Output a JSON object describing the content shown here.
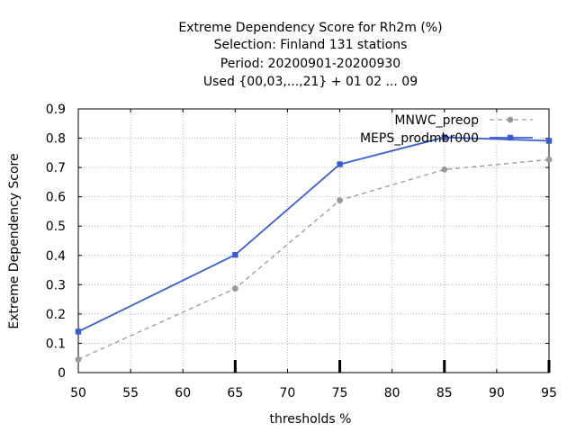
{
  "chart_data": {
    "type": "line",
    "title_lines": [
      "Extreme Dependency Score  for Rh2m (%)",
      "Selection: Finland    131 stations",
      "Period: 20200901-20200930",
      "Used {00,03,...,21} + 01 02 ... 09"
    ],
    "xlabel": "thresholds %",
    "ylabel": "Extreme Dependency Score",
    "xlim": [
      50,
      95
    ],
    "ylim": [
      0,
      0.9
    ],
    "xticks": [
      50,
      55,
      60,
      65,
      70,
      75,
      80,
      85,
      90,
      95
    ],
    "yticks": [
      0,
      0.1,
      0.2,
      0.3,
      0.4,
      0.5,
      0.6,
      0.7,
      0.8,
      0.9
    ],
    "ytick_labels": [
      "0",
      "0.1",
      "0.2",
      "0.3",
      "0.4",
      "0.5",
      "0.6",
      "0.7",
      "0.8",
      "0.9"
    ],
    "major_x_marks": [
      65,
      75,
      85,
      95
    ],
    "grid": true,
    "legend_position": "top-right",
    "series": [
      {
        "name": "MNWC_preop",
        "color": "#999999",
        "dash": true,
        "marker": "circle",
        "x": [
          50,
          65,
          75,
          85,
          95
        ],
        "y": [
          0.045,
          0.287,
          0.588,
          0.693,
          0.727
        ]
      },
      {
        "name": "MEPS_prodmbr000",
        "color": "#3a5fcd",
        "dash": false,
        "marker": "square",
        "x": [
          50,
          65,
          75,
          85,
          95
        ],
        "y": [
          0.14,
          0.402,
          0.711,
          0.803,
          0.791
        ]
      }
    ]
  }
}
